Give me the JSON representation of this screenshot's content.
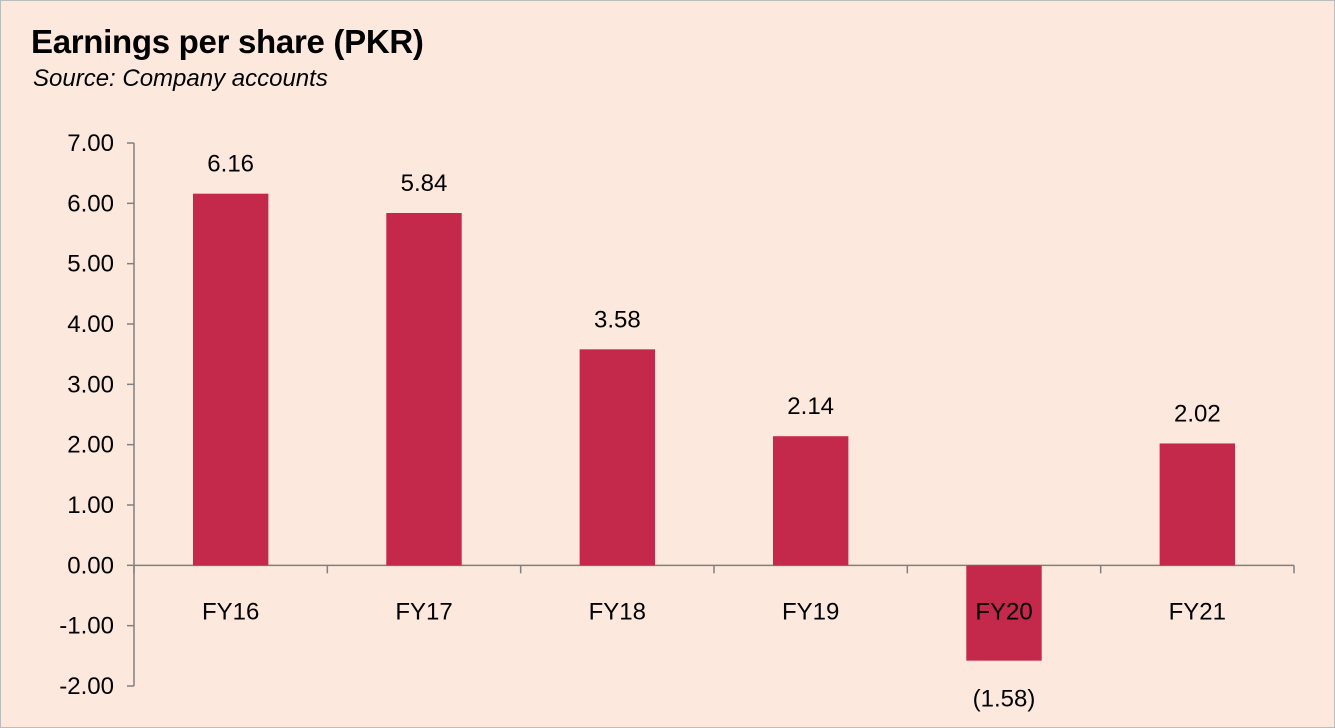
{
  "chart_data": {
    "type": "bar",
    "title": "Earnings per share (PKR)",
    "subtitle": "Source: Company accounts",
    "xlabel": "",
    "ylabel": "",
    "categories": [
      "FY16",
      "FY17",
      "FY18",
      "FY19",
      "FY20",
      "FY21"
    ],
    "values": [
      6.16,
      5.84,
      3.58,
      2.14,
      -1.58,
      2.02
    ],
    "data_labels": [
      "6.16",
      "5.84",
      "3.58",
      "2.14",
      "(1.58)",
      "2.02"
    ],
    "ylim": [
      -2.0,
      7.0
    ],
    "yticks": [
      "7.00",
      "6.00",
      "5.00",
      "4.00",
      "3.00",
      "2.00",
      "1.00",
      "0.00",
      "-1.00",
      "-2.00"
    ],
    "ytick_values": [
      7,
      6,
      5,
      4,
      3,
      2,
      1,
      0,
      -1,
      -2
    ],
    "grid": false,
    "legend": "none",
    "colors": {
      "bar": "#c4284a",
      "background": "#fce8dd",
      "axis": "#808080"
    }
  }
}
